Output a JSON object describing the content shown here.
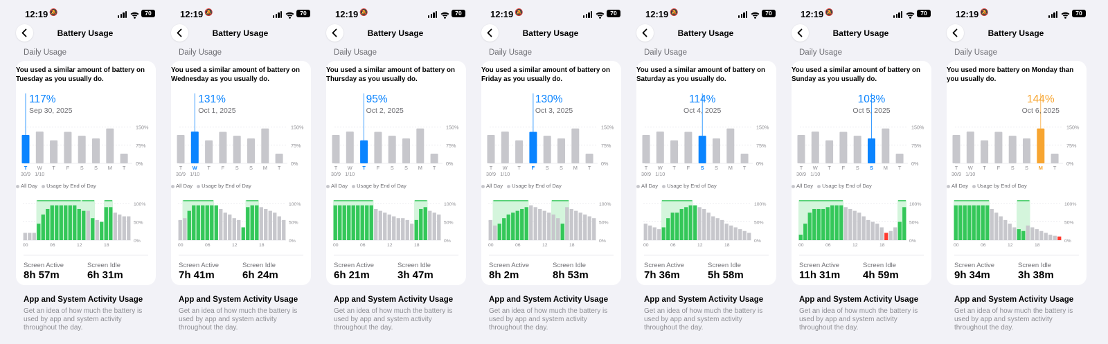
{
  "status_bar": {
    "time": "12:19",
    "battery": "70",
    "icons": [
      "bell-slash-icon",
      "cellular-signal-icon",
      "wifi-icon",
      "battery-icon"
    ]
  },
  "nav": {
    "title": "Battery Usage",
    "back_icon": "chevron-left-icon"
  },
  "section_label": "Daily Usage",
  "weekday_labels": [
    "T",
    "W",
    "T",
    "F",
    "S",
    "S",
    "M",
    "T"
  ],
  "date_sublabels": [
    "30/9",
    "1/10"
  ],
  "y_ticks": [
    "150%",
    "75%",
    "0%"
  ],
  "weekly_usage_percent": [
    117,
    131,
    95,
    130,
    114,
    103,
    144,
    40
  ],
  "hour_ticks": [
    "00",
    "06",
    "12",
    "18"
  ],
  "hourly_ticks": [
    "100%",
    "50%",
    "0%"
  ],
  "legend": {
    "all_day": "All Day",
    "usage_end": "Usage by End of Day"
  },
  "screen_active_label": "Screen Active",
  "screen_idle_label": "Screen Idle",
  "app_activity": {
    "title": "App and System Activity Usage",
    "description": "Get an idea of how much the battery is used by app and system activity throughout the day."
  },
  "colors": {
    "blue": "#0a84ff",
    "orange": "#f7a531",
    "gray": "#c7c7cc",
    "green": "#34c759",
    "light_green": "#d4f5dc",
    "red": "#ff3b30"
  },
  "panels": [
    {
      "summary": "You used a similar amount of battery on Tuesday as you usually do.",
      "selected_index": 0,
      "percent": "117%",
      "date": "Sep 30, 2025",
      "screen_active": "8h 57m",
      "screen_idle": "6h 31m",
      "hourly_levels": [
        20,
        20,
        20,
        45,
        70,
        85,
        95,
        95,
        95,
        95,
        95,
        95,
        85,
        80,
        80,
        60,
        55,
        50,
        90,
        90,
        75,
        70,
        65,
        65
      ],
      "hourly_state": [
        "g",
        "g",
        "g",
        "G",
        "G",
        "G",
        "G",
        "G",
        "G",
        "G",
        "G",
        "G",
        "G",
        "G",
        "g",
        "G",
        "g",
        "G",
        "G",
        "G",
        "g",
        "g",
        "g",
        "g"
      ],
      "charge_spans": [
        [
          3,
          13
        ],
        [
          13,
          16
        ],
        [
          18,
          20
        ]
      ]
    },
    {
      "summary": "You used a similar amount of battery on Wednesday as you usually do.",
      "selected_index": 1,
      "percent": "131%",
      "date": "Oct 1, 2025",
      "screen_active": "7h 41m",
      "screen_idle": "6h 24m",
      "hourly_levels": [
        55,
        60,
        80,
        95,
        95,
        95,
        95,
        95,
        95,
        85,
        75,
        70,
        60,
        55,
        35,
        90,
        95,
        95,
        90,
        85,
        80,
        75,
        65,
        55
      ],
      "hourly_state": [
        "g",
        "g",
        "G",
        "G",
        "G",
        "G",
        "G",
        "G",
        "G",
        "g",
        "g",
        "g",
        "g",
        "g",
        "G",
        "G",
        "G",
        "G",
        "g",
        "g",
        "g",
        "g",
        "g",
        "g"
      ],
      "charge_spans": [
        [
          1,
          8
        ],
        [
          15,
          18
        ]
      ]
    },
    {
      "summary": "You used a similar amount of battery on Thursday as you usually do.",
      "selected_index": 2,
      "percent": "95%",
      "date": "Oct 2, 2025",
      "screen_active": "6h 21m",
      "screen_idle": "3h 47m",
      "hourly_levels": [
        95,
        95,
        95,
        95,
        95,
        95,
        95,
        95,
        95,
        85,
        80,
        75,
        70,
        65,
        60,
        60,
        55,
        45,
        55,
        85,
        90,
        80,
        75,
        70
      ],
      "hourly_state": [
        "G",
        "G",
        "G",
        "G",
        "G",
        "G",
        "G",
        "G",
        "G",
        "g",
        "g",
        "g",
        "g",
        "g",
        "g",
        "g",
        "g",
        "g",
        "G",
        "G",
        "G",
        "g",
        "g",
        "g"
      ],
      "charge_spans": [
        [
          0,
          9
        ],
        [
          18,
          21
        ]
      ]
    },
    {
      "summary": "You used a similar amount of battery on Friday as you usually do.",
      "selected_index": 3,
      "percent": "130%",
      "date": "Oct 3, 2025",
      "screen_active": "8h 2m",
      "screen_idle": "8h 53m",
      "hourly_levels": [
        55,
        40,
        45,
        60,
        70,
        75,
        80,
        85,
        90,
        95,
        90,
        85,
        80,
        75,
        70,
        60,
        45,
        90,
        85,
        80,
        75,
        70,
        65,
        60
      ],
      "hourly_state": [
        "g",
        "g",
        "G",
        "G",
        "G",
        "G",
        "G",
        "G",
        "G",
        "g",
        "g",
        "g",
        "g",
        "g",
        "g",
        "g",
        "G",
        "g",
        "g",
        "g",
        "g",
        "g",
        "g",
        "g"
      ],
      "charge_spans": [
        [
          1,
          9
        ],
        [
          14,
          18
        ]
      ]
    },
    {
      "summary": "You used a similar amount of battery on Saturday as you usually do.",
      "selected_index": 4,
      "percent": "114%",
      "date": "Oct 4, 2025",
      "screen_active": "7h 36m",
      "screen_idle": "5h 58m",
      "hourly_levels": [
        45,
        40,
        35,
        30,
        35,
        60,
        75,
        75,
        85,
        90,
        95,
        95,
        90,
        85,
        75,
        65,
        60,
        55,
        45,
        40,
        35,
        30,
        25,
        20
      ],
      "hourly_state": [
        "g",
        "g",
        "g",
        "g",
        "G",
        "G",
        "G",
        "G",
        "G",
        "G",
        "G",
        "G",
        "g",
        "g",
        "g",
        "g",
        "g",
        "g",
        "g",
        "g",
        "g",
        "g",
        "g",
        "g"
      ],
      "charge_spans": [
        [
          4,
          11
        ]
      ]
    },
    {
      "summary": "You used a similar amount of battery on Sunday as you usually do.",
      "selected_index": 5,
      "percent": "103%",
      "date": "Oct 5, 2025",
      "screen_active": "11h 31m",
      "screen_idle": "4h 59m",
      "hourly_levels": [
        15,
        45,
        75,
        85,
        85,
        85,
        90,
        95,
        95,
        95,
        90,
        85,
        80,
        75,
        65,
        55,
        50,
        45,
        35,
        20,
        25,
        35,
        50,
        90
      ],
      "hourly_state": [
        "G",
        "G",
        "G",
        "G",
        "G",
        "G",
        "G",
        "G",
        "G",
        "G",
        "g",
        "g",
        "g",
        "g",
        "g",
        "g",
        "g",
        "g",
        "g",
        "r",
        "g",
        "g",
        "G",
        "G"
      ],
      "charge_spans": [
        [
          0,
          10
        ],
        [
          22,
          24
        ]
      ]
    },
    {
      "summary": "You used more battery on Monday than you usually do.",
      "selected_index": 6,
      "percent": "144%",
      "date": "Oct 6, 2025",
      "screen_active": "9h 34m",
      "screen_idle": "3h 38m",
      "hourly_levels": [
        95,
        95,
        95,
        95,
        95,
        95,
        95,
        95,
        85,
        75,
        65,
        55,
        45,
        35,
        30,
        25,
        40,
        35,
        30,
        25,
        20,
        15,
        12,
        10
      ],
      "hourly_state": [
        "G",
        "G",
        "G",
        "G",
        "G",
        "G",
        "G",
        "G",
        "g",
        "g",
        "g",
        "g",
        "g",
        "g",
        "G",
        "G",
        "g",
        "g",
        "g",
        "g",
        "g",
        "g",
        "g",
        "r"
      ],
      "charge_spans": [
        [
          0,
          8
        ],
        [
          14,
          17
        ]
      ]
    }
  ]
}
